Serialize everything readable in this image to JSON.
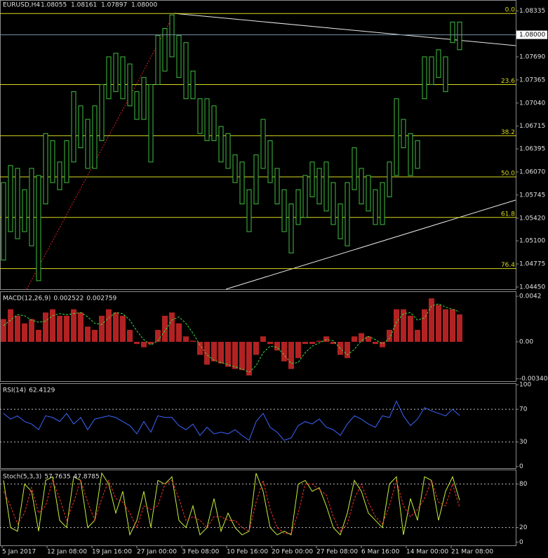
{
  "chart_data": [
    {
      "type": "range",
      "title": "EURUSD,H4",
      "ohlc_labels": [
        "1.08055",
        "1.08161",
        "1.07897",
        "1.08000"
      ],
      "color": "#3fbf3f",
      "high": [
        1.0592,
        1.0616,
        1.0612,
        1.0582,
        1.0612,
        1.0602,
        1.0661,
        1.0651,
        1.0621,
        1.0651,
        1.072,
        1.07,
        1.0681,
        1.07,
        1.073,
        1.0769,
        1.0774,
        1.0769,
        1.0759,
        1.072,
        1.074,
        1.073,
        1.0799,
        1.0809,
        1.0828,
        1.0799,
        1.0789,
        1.0749,
        1.071,
        1.071,
        1.07,
        1.0671,
        1.0661,
        1.0631,
        1.0621,
        1.0582,
        1.0631,
        1.0681,
        1.0651,
        1.0612,
        1.0582,
        1.0562,
        1.0582,
        1.0602,
        1.0621,
        1.0612,
        1.0621,
        1.0592,
        1.0562,
        1.0592,
        1.0641,
        1.0612,
        1.0602,
        1.0582,
        1.0592,
        1.0621,
        1.071,
        1.0681,
        1.0661,
        1.0651,
        1.0769,
        1.0769,
        1.0779,
        1.0769,
        1.0818,
        1.0818
      ],
      "low": [
        1.0483,
        1.0523,
        1.0513,
        1.0523,
        1.0503,
        1.0454,
        1.0562,
        1.0592,
        1.0582,
        1.0592,
        1.0621,
        1.0641,
        1.0612,
        1.0612,
        1.0651,
        1.071,
        1.072,
        1.071,
        1.07,
        1.0681,
        1.0681,
        1.0621,
        1.073,
        1.0749,
        1.0769,
        1.074,
        1.071,
        1.071,
        1.0661,
        1.0651,
        1.0651,
        1.0621,
        1.0612,
        1.0592,
        1.0562,
        1.0523,
        1.0562,
        1.0612,
        1.0592,
        1.0562,
        1.0523,
        1.0493,
        1.0533,
        1.0543,
        1.0572,
        1.0562,
        1.0552,
        1.0533,
        1.0513,
        1.0503,
        1.0582,
        1.0562,
        1.0552,
        1.0533,
        1.0533,
        1.0572,
        1.0602,
        1.0641,
        1.0602,
        1.0612,
        1.071,
        1.073,
        1.074,
        1.072,
        1.0789,
        1.0779
      ],
      "ylim": [
        1.0442,
        1.0848
      ],
      "yticks": [
        1.08335,
        {
          "value": 1.0769,
          "label": "1.07690"
        },
        1.07365,
        {
          "value": 1.0704,
          "label": "1.07040"
        },
        1.06715,
        1.06395,
        {
          "value": 1.0607,
          "label": "1.06070"
        },
        1.05745,
        {
          "value": 1.0542,
          "label": "1.05420"
        },
        {
          "value": 1.051,
          "label": "1.05100"
        },
        1.04775,
        {
          "value": 1.0445,
          "label": "1.04450"
        }
      ],
      "current_price": {
        "value": 1.08,
        "label": "1.08000"
      },
      "levels": [
        {
          "label": "0.0",
          "value": 1.083
        },
        {
          "label": "23.6",
          "value": 1.073
        },
        {
          "label": "38.2",
          "value": 1.0658
        },
        {
          "label": "50.0",
          "value": 1.06
        },
        {
          "label": "61.8",
          "value": 1.0543
        },
        {
          "label": "76.4",
          "value": 1.0471
        }
      ]
    },
    {
      "type": "macd",
      "title": "MACD(12,26,9)",
      "ylim": [
        -0.00362,
        0.00459
      ],
      "yticks": [
        0.0042,
        {
          "value": 0,
          "label": "0.00"
        },
        -0.003404
      ],
      "series": [
        {
          "color": "#b22222",
          "values": [
            0.0021,
            0.003,
            0.0024,
            0.0017,
            0.0021,
            0.0011,
            0.0027,
            0.003,
            0.0024,
            0.0024,
            0.003,
            0.0027,
            0.0014,
            0.0011,
            0.0024,
            0.003,
            0.0027,
            0.0024,
            0.0011,
            -0.0002,
            -0.0005,
            -0.0002,
            0.0011,
            0.0024,
            0.0027,
            0.0017,
            0.0005,
            0.0001,
            -0.0012,
            -0.0021,
            -0.0018,
            -0.002,
            -0.0023,
            -0.0025,
            -0.0026,
            -0.0031,
            -0.0012,
            0.0005,
            -0.0002,
            -0.0008,
            -0.0018,
            -0.0025,
            -0.0015,
            -0.0002,
            -0.0002,
            0.0001,
            0.0005,
            -0.0002,
            -0.0012,
            -0.0015,
            0.0005,
            0.0008,
            0.0005,
            -0.0002,
            -0.0005,
            0.0011,
            0.003,
            0.003,
            0.0024,
            0.0011,
            0.003,
            0.004,
            0.0034,
            0.003,
            0.003,
            0.002522
          ]
        },
        {
          "color": "#3cdc3c",
          "values": [
            0.0015,
            0.002,
            0.0025,
            0.0024,
            0.002,
            0.0018,
            0.0019,
            0.0024,
            0.0026,
            0.0025,
            0.0026,
            0.0027,
            0.0023,
            0.0017,
            0.0016,
            0.0022,
            0.0027,
            0.0026,
            0.002,
            0.001,
            0.0002,
            -0.0003,
            0.0001,
            0.001,
            0.002,
            0.0023,
            0.0017,
            0.0008,
            -0.0003,
            -0.0012,
            -0.0017,
            -0.0019,
            -0.0021,
            -0.0023,
            -0.0025,
            -0.0028,
            -0.0022,
            -0.001,
            -0.0004,
            -0.0005,
            -0.0012,
            -0.002,
            -0.0019,
            -0.001,
            -0.0004,
            -0.0001,
            0.0002,
            0.0001,
            -0.0006,
            -0.0012,
            -0.0007,
            0.0001,
            0.0005,
            0.0002,
            -0.0002,
            0.0003,
            0.0018,
            0.0026,
            0.0027,
            0.002,
            0.0022,
            0.0033,
            0.0035,
            0.0032,
            0.003,
            0.002759
          ]
        }
      ]
    },
    {
      "type": "line",
      "title": "RSI(14)",
      "ylim": [
        -2,
        101
      ],
      "yticks": [
        100,
        70,
        30,
        0
      ],
      "levels": [
        70,
        30
      ],
      "series": [
        {
          "color": "#3c64ff",
          "values": [
            65,
            58,
            62,
            55,
            52,
            45,
            62,
            60,
            55,
            65,
            52,
            60,
            45,
            58,
            60,
            62,
            60,
            55,
            50,
            40,
            55,
            42,
            62,
            60,
            60,
            50,
            45,
            52,
            38,
            48,
            40,
            42,
            40,
            45,
            38,
            32,
            55,
            65,
            48,
            42,
            32,
            35,
            50,
            55,
            52,
            58,
            48,
            45,
            38,
            52,
            62,
            58,
            52,
            48,
            62,
            60,
            80,
            62,
            50,
            58,
            72,
            68,
            65,
            62,
            70,
            62.4129
          ]
        }
      ]
    },
    {
      "type": "line",
      "title": "Stoch(5,3,3)",
      "ylim": [
        -4.5,
        99
      ],
      "yticks": [
        80,
        20,
        0
      ],
      "levels": [
        80,
        20
      ],
      "xlabels": [
        "5 Jan 2017",
        "12 Jan 08:00",
        "19 Jan 16:00",
        "27 Jan 00:00",
        "3 Feb 08:00",
        "10 Feb 16:00",
        "20 Feb 00:00",
        "27 Feb 08:00",
        "6 Mar 16:00",
        "14 Mar 00:00",
        "21 Mar 08:00"
      ],
      "series": [
        {
          "color": "#c8f03c",
          "values": [
            85,
            20,
            15,
            80,
            70,
            15,
            85,
            90,
            30,
            20,
            90,
            85,
            20,
            30,
            95,
            80,
            40,
            70,
            10,
            30,
            70,
            20,
            85,
            80,
            90,
            30,
            20,
            50,
            10,
            20,
            60,
            15,
            40,
            20,
            10,
            15,
            95,
            70,
            20,
            10,
            15,
            10,
            80,
            85,
            70,
            75,
            50,
            20,
            10,
            40,
            85,
            70,
            40,
            30,
            20,
            80,
            90,
            10,
            60,
            30,
            90,
            85,
            30,
            70,
            90,
            57.7635
          ]
        },
        {
          "color": "#ff3030",
          "values": [
            70,
            50,
            25,
            40,
            75,
            40,
            50,
            85,
            60,
            30,
            55,
            85,
            55,
            30,
            60,
            85,
            60,
            55,
            40,
            20,
            50,
            45,
            50,
            80,
            85,
            60,
            30,
            35,
            30,
            20,
            35,
            35,
            30,
            30,
            20,
            15,
            55,
            85,
            45,
            20,
            12,
            12,
            40,
            80,
            80,
            72,
            65,
            35,
            15,
            25,
            60,
            80,
            55,
            35,
            25,
            50,
            85,
            50,
            35,
            45,
            60,
            85,
            55,
            50,
            80,
            47.8785
          ]
        }
      ]
    }
  ]
}
